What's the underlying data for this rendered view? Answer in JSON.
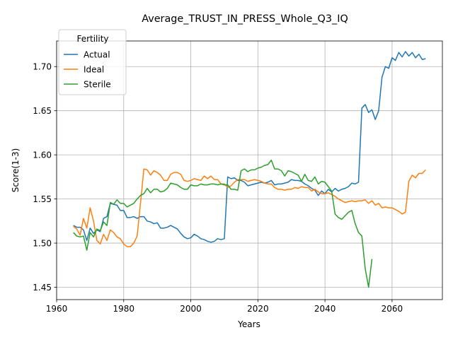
{
  "chart_data": {
    "type": "line",
    "title": "Average_TRUST_IN_PRESS_Whole_Q3_IQ",
    "xlabel": "Years",
    "ylabel": "Score(1-3)",
    "xlim": [
      1960,
      2075
    ],
    "ylim": [
      1.436,
      1.729
    ],
    "x_ticks": [
      1960,
      1980,
      2000,
      2020,
      2040,
      2060
    ],
    "y_ticks": [
      1.45,
      1.5,
      1.55,
      1.6,
      1.65,
      1.7
    ],
    "grid": true,
    "legend": {
      "title": "Fertility",
      "placement": "top-left"
    },
    "series": [
      {
        "name": "Actual",
        "color": "#1f77b4",
        "points": [
          [
            1965,
            1.52
          ],
          [
            1966,
            1.518
          ],
          [
            1967,
            1.518
          ],
          [
            1968,
            1.515
          ],
          [
            1969,
            1.503
          ],
          [
            1970,
            1.517
          ],
          [
            1971,
            1.511
          ],
          [
            1972,
            1.515
          ],
          [
            1973,
            1.513
          ],
          [
            1974,
            1.528
          ],
          [
            1975,
            1.53
          ],
          [
            1976,
            1.545
          ],
          [
            1977,
            1.544
          ],
          [
            1978,
            1.543
          ],
          [
            1979,
            1.537
          ],
          [
            1980,
            1.537
          ],
          [
            1981,
            1.529
          ],
          [
            1982,
            1.529
          ],
          [
            1983,
            1.53
          ],
          [
            1984,
            1.528
          ],
          [
            1985,
            1.53
          ],
          [
            1986,
            1.53
          ],
          [
            1987,
            1.525
          ],
          [
            1988,
            1.524
          ],
          [
            1989,
            1.522
          ],
          [
            1990,
            1.523
          ],
          [
            1991,
            1.517
          ],
          [
            1992,
            1.517
          ],
          [
            1993,
            1.518
          ],
          [
            1994,
            1.52
          ],
          [
            1995,
            1.518
          ],
          [
            1996,
            1.516
          ],
          [
            1997,
            1.511
          ],
          [
            1998,
            1.507
          ],
          [
            1999,
            1.505
          ],
          [
            2000,
            1.506
          ],
          [
            2001,
            1.51
          ],
          [
            2002,
            1.508
          ],
          [
            2003,
            1.505
          ],
          [
            2004,
            1.504
          ],
          [
            2005,
            1.502
          ],
          [
            2006,
            1.501
          ],
          [
            2007,
            1.502
          ],
          [
            2008,
            1.505
          ],
          [
            2009,
            1.504
          ],
          [
            2010,
            1.505
          ],
          [
            2011,
            1.575
          ],
          [
            2012,
            1.573
          ],
          [
            2013,
            1.574
          ],
          [
            2014,
            1.571
          ],
          [
            2015,
            1.571
          ],
          [
            2016,
            1.569
          ],
          [
            2017,
            1.565
          ],
          [
            2018,
            1.566
          ],
          [
            2019,
            1.567
          ],
          [
            2020,
            1.568
          ],
          [
            2021,
            1.569
          ],
          [
            2022,
            1.568
          ],
          [
            2023,
            1.569
          ],
          [
            2024,
            1.571
          ],
          [
            2025,
            1.566
          ],
          [
            2026,
            1.567
          ],
          [
            2027,
            1.567
          ],
          [
            2028,
            1.568
          ],
          [
            2029,
            1.569
          ],
          [
            2030,
            1.572
          ],
          [
            2031,
            1.571
          ],
          [
            2032,
            1.571
          ],
          [
            2033,
            1.57
          ],
          [
            2034,
            1.567
          ],
          [
            2035,
            1.565
          ],
          [
            2036,
            1.562
          ],
          [
            2037,
            1.56
          ],
          [
            2038,
            1.554
          ],
          [
            2039,
            1.559
          ],
          [
            2040,
            1.556
          ],
          [
            2041,
            1.561
          ],
          [
            2042,
            1.558
          ],
          [
            2043,
            1.562
          ],
          [
            2044,
            1.559
          ],
          [
            2045,
            1.561
          ],
          [
            2046,
            1.562
          ],
          [
            2047,
            1.564
          ],
          [
            2048,
            1.568
          ],
          [
            2049,
            1.567
          ],
          [
            2050,
            1.569
          ],
          [
            2051,
            1.653
          ],
          [
            2052,
            1.657
          ],
          [
            2053,
            1.648
          ],
          [
            2054,
            1.651
          ],
          [
            2055,
            1.64
          ],
          [
            2056,
            1.65
          ],
          [
            2057,
            1.688
          ],
          [
            2058,
            1.7
          ],
          [
            2059,
            1.698
          ],
          [
            2060,
            1.71
          ],
          [
            2061,
            1.707
          ],
          [
            2062,
            1.716
          ],
          [
            2063,
            1.711
          ],
          [
            2064,
            1.717
          ],
          [
            2065,
            1.712
          ],
          [
            2066,
            1.716
          ],
          [
            2067,
            1.71
          ],
          [
            2068,
            1.714
          ],
          [
            2069,
            1.708
          ],
          [
            2070,
            1.709
          ]
        ]
      },
      {
        "name": "Ideal",
        "color": "#ff7f0e",
        "points": [
          [
            1965,
            1.519
          ],
          [
            1966,
            1.516
          ],
          [
            1967,
            1.509
          ],
          [
            1968,
            1.528
          ],
          [
            1969,
            1.517
          ],
          [
            1970,
            1.54
          ],
          [
            1971,
            1.525
          ],
          [
            1972,
            1.503
          ],
          [
            1973,
            1.499
          ],
          [
            1974,
            1.51
          ],
          [
            1975,
            1.503
          ],
          [
            1976,
            1.515
          ],
          [
            1977,
            1.512
          ],
          [
            1978,
            1.507
          ],
          [
            1979,
            1.505
          ],
          [
            1980,
            1.499
          ],
          [
            1981,
            1.496
          ],
          [
            1982,
            1.496
          ],
          [
            1983,
            1.5
          ],
          [
            1984,
            1.508
          ],
          [
            1985,
            1.545
          ],
          [
            1986,
            1.584
          ],
          [
            1987,
            1.583
          ],
          [
            1988,
            1.577
          ],
          [
            1989,
            1.582
          ],
          [
            1990,
            1.58
          ],
          [
            1991,
            1.577
          ],
          [
            1992,
            1.571
          ],
          [
            1993,
            1.571
          ],
          [
            1994,
            1.578
          ],
          [
            1995,
            1.58
          ],
          [
            1996,
            1.58
          ],
          [
            1997,
            1.578
          ],
          [
            1998,
            1.571
          ],
          [
            1999,
            1.57
          ],
          [
            2000,
            1.571
          ],
          [
            2001,
            1.573
          ],
          [
            2002,
            1.572
          ],
          [
            2003,
            1.571
          ],
          [
            2004,
            1.576
          ],
          [
            2005,
            1.573
          ],
          [
            2006,
            1.576
          ],
          [
            2007,
            1.572
          ],
          [
            2008,
            1.572
          ],
          [
            2009,
            1.567
          ],
          [
            2010,
            1.567
          ],
          [
            2011,
            1.563
          ],
          [
            2012,
            1.565
          ],
          [
            2013,
            1.569
          ],
          [
            2014,
            1.572
          ],
          [
            2015,
            1.572
          ],
          [
            2016,
            1.572
          ],
          [
            2017,
            1.57
          ],
          [
            2018,
            1.571
          ],
          [
            2019,
            1.572
          ],
          [
            2020,
            1.571
          ],
          [
            2021,
            1.57
          ],
          [
            2022,
            1.568
          ],
          [
            2023,
            1.567
          ],
          [
            2024,
            1.567
          ],
          [
            2025,
            1.563
          ],
          [
            2026,
            1.561
          ],
          [
            2027,
            1.561
          ],
          [
            2028,
            1.56
          ],
          [
            2029,
            1.561
          ],
          [
            2030,
            1.561
          ],
          [
            2031,
            1.563
          ],
          [
            2032,
            1.562
          ],
          [
            2033,
            1.564
          ],
          [
            2034,
            1.563
          ],
          [
            2035,
            1.563
          ],
          [
            2036,
            1.559
          ],
          [
            2037,
            1.561
          ],
          [
            2038,
            1.558
          ],
          [
            2039,
            1.556
          ],
          [
            2040,
            1.556
          ],
          [
            2041,
            1.557
          ],
          [
            2042,
            1.555
          ],
          [
            2043,
            1.553
          ],
          [
            2044,
            1.55
          ],
          [
            2045,
            1.548
          ],
          [
            2046,
            1.546
          ],
          [
            2047,
            1.547
          ],
          [
            2048,
            1.548
          ],
          [
            2049,
            1.547
          ],
          [
            2050,
            1.548
          ],
          [
            2051,
            1.548
          ],
          [
            2052,
            1.549
          ],
          [
            2053,
            1.545
          ],
          [
            2054,
            1.548
          ],
          [
            2055,
            1.543
          ],
          [
            2056,
            1.545
          ],
          [
            2057,
            1.54
          ],
          [
            2058,
            1.541
          ],
          [
            2059,
            1.54
          ],
          [
            2060,
            1.54
          ],
          [
            2061,
            1.538
          ],
          [
            2062,
            1.536
          ],
          [
            2063,
            1.533
          ],
          [
            2064,
            1.535
          ],
          [
            2065,
            1.57
          ],
          [
            2066,
            1.577
          ],
          [
            2067,
            1.574
          ],
          [
            2068,
            1.579
          ],
          [
            2069,
            1.579
          ],
          [
            2070,
            1.583
          ]
        ]
      },
      {
        "name": "Sterile",
        "color": "#2ca02c",
        "points": [
          [
            1965,
            1.512
          ],
          [
            1966,
            1.508
          ],
          [
            1967,
            1.507
          ],
          [
            1968,
            1.508
          ],
          [
            1969,
            1.492
          ],
          [
            1970,
            1.512
          ],
          [
            1971,
            1.507
          ],
          [
            1972,
            1.516
          ],
          [
            1973,
            1.514
          ],
          [
            1974,
            1.524
          ],
          [
            1975,
            1.52
          ],
          [
            1976,
            1.546
          ],
          [
            1977,
            1.544
          ],
          [
            1978,
            1.549
          ],
          [
            1979,
            1.545
          ],
          [
            1980,
            1.545
          ],
          [
            1981,
            1.541
          ],
          [
            1982,
            1.543
          ],
          [
            1983,
            1.545
          ],
          [
            1984,
            1.55
          ],
          [
            1985,
            1.554
          ],
          [
            1986,
            1.556
          ],
          [
            1987,
            1.562
          ],
          [
            1988,
            1.557
          ],
          [
            1989,
            1.561
          ],
          [
            1990,
            1.561
          ],
          [
            1991,
            1.558
          ],
          [
            1992,
            1.559
          ],
          [
            1993,
            1.562
          ],
          [
            1994,
            1.568
          ],
          [
            1995,
            1.567
          ],
          [
            1996,
            1.566
          ],
          [
            1997,
            1.563
          ],
          [
            1998,
            1.561
          ],
          [
            1999,
            1.561
          ],
          [
            2000,
            1.566
          ],
          [
            2001,
            1.565
          ],
          [
            2002,
            1.565
          ],
          [
            2003,
            1.567
          ],
          [
            2004,
            1.566
          ],
          [
            2005,
            1.566
          ],
          [
            2006,
            1.567
          ],
          [
            2007,
            1.567
          ],
          [
            2008,
            1.566
          ],
          [
            2009,
            1.567
          ],
          [
            2010,
            1.566
          ],
          [
            2011,
            1.566
          ],
          [
            2012,
            1.561
          ],
          [
            2013,
            1.561
          ],
          [
            2014,
            1.56
          ],
          [
            2015,
            1.582
          ],
          [
            2016,
            1.584
          ],
          [
            2017,
            1.581
          ],
          [
            2018,
            1.583
          ],
          [
            2019,
            1.583
          ],
          [
            2020,
            1.585
          ],
          [
            2021,
            1.586
          ],
          [
            2022,
            1.588
          ],
          [
            2023,
            1.589
          ],
          [
            2024,
            1.594
          ],
          [
            2025,
            1.584
          ],
          [
            2026,
            1.584
          ],
          [
            2027,
            1.582
          ],
          [
            2028,
            1.576
          ],
          [
            2029,
            1.582
          ],
          [
            2030,
            1.581
          ],
          [
            2031,
            1.579
          ],
          [
            2032,
            1.577
          ],
          [
            2033,
            1.57
          ],
          [
            2034,
            1.578
          ],
          [
            2035,
            1.571
          ],
          [
            2036,
            1.57
          ],
          [
            2037,
            1.575
          ],
          [
            2038,
            1.567
          ],
          [
            2039,
            1.57
          ],
          [
            2040,
            1.569
          ],
          [
            2041,
            1.564
          ],
          [
            2042,
            1.559
          ],
          [
            2043,
            1.533
          ],
          [
            2044,
            1.529
          ],
          [
            2045,
            1.527
          ],
          [
            2046,
            1.531
          ],
          [
            2047,
            1.535
          ],
          [
            2048,
            1.537
          ],
          [
            2049,
            1.522
          ],
          [
            2050,
            1.512
          ],
          [
            2051,
            1.508
          ],
          [
            2052,
            1.471
          ],
          [
            2053,
            1.45
          ],
          [
            2054,
            1.482
          ]
        ]
      }
    ]
  }
}
